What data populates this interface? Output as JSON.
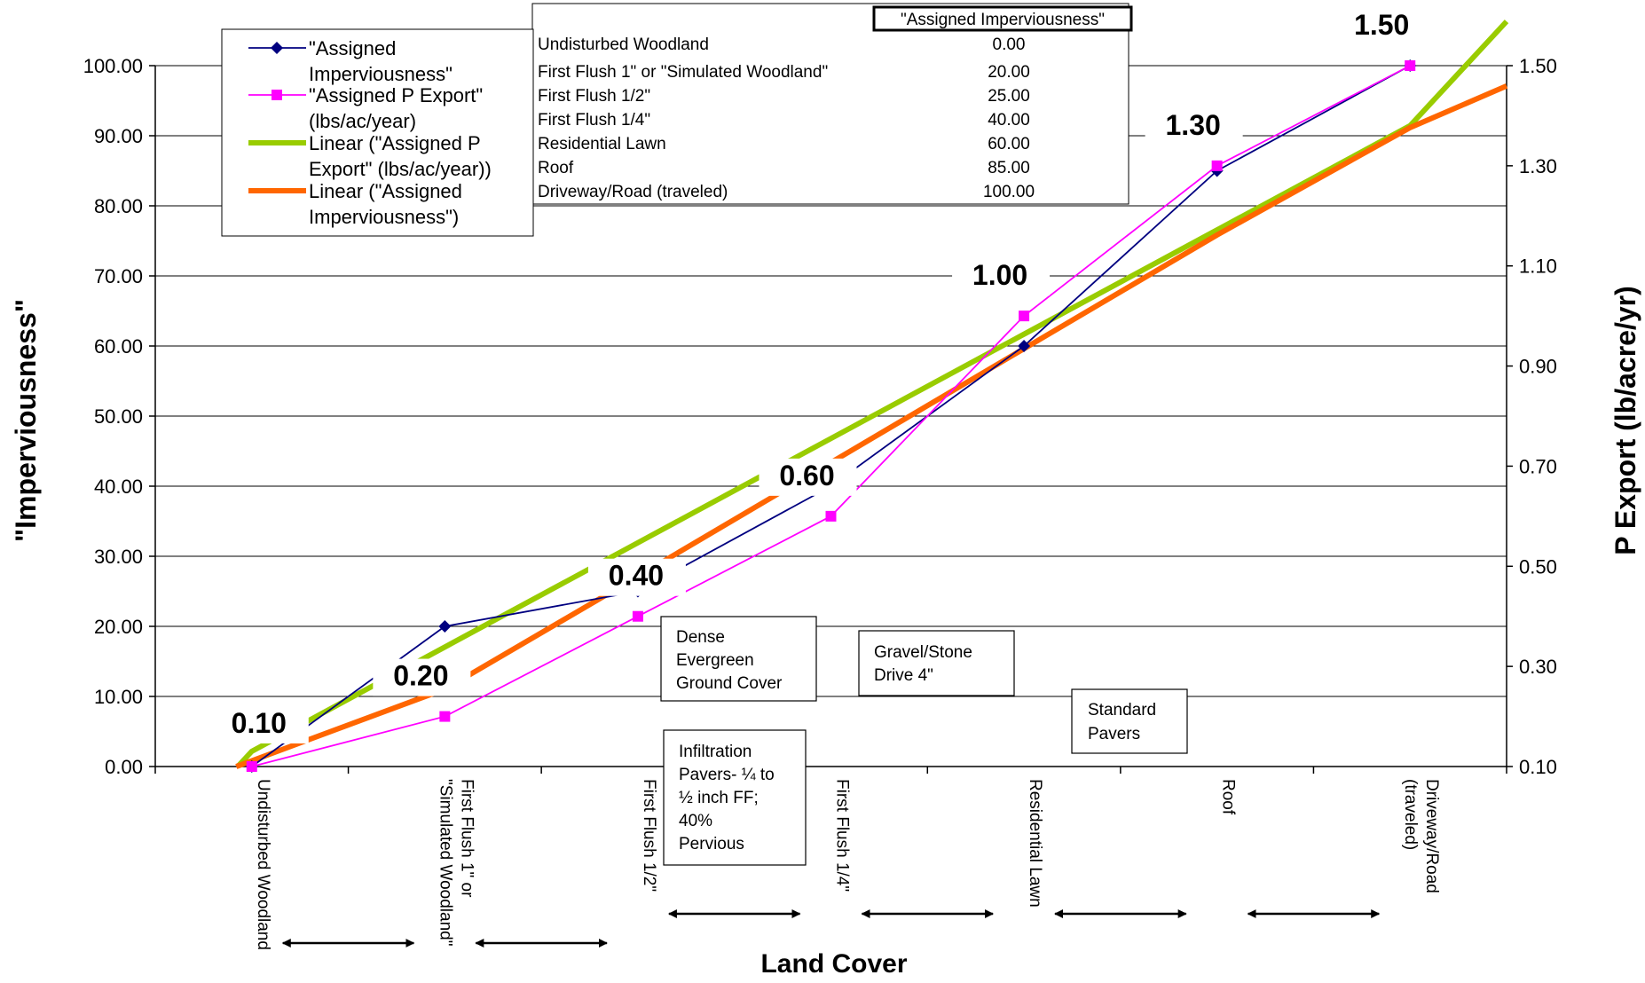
{
  "chart_data": {
    "type": "line",
    "xlabel": "Land Cover",
    "ylabel": "\"Imperviousness\"",
    "y2label": "P Export (lb/acre/yr)",
    "ylim": [
      0,
      100
    ],
    "y2lim": [
      0.1,
      1.5
    ],
    "y_ticks": [
      "0.00",
      "10.00",
      "20.00",
      "30.00",
      "40.00",
      "50.00",
      "60.00",
      "70.00",
      "80.00",
      "90.00",
      "100.00"
    ],
    "y2_ticks": [
      "0.10",
      "0.30",
      "0.50",
      "0.70",
      "0.90",
      "1.10",
      "1.30",
      "1.50"
    ],
    "grid": true,
    "categories": [
      [
        "Undisturbed Woodland"
      ],
      [
        "First Flush 1\" or",
        "\"Simulated Woodland\""
      ],
      [
        "First Flush 1/2\""
      ],
      [
        "First Flush 1/4\""
      ],
      [
        "Residential Lawn"
      ],
      [
        "Roof"
      ],
      [
        "Driveway/Road",
        "(traveled)"
      ]
    ],
    "series": [
      {
        "name": "\"Assigned Imperviousness\"",
        "axis": "left",
        "color": "#000080",
        "marker": "diamond",
        "values": [
          0,
          20,
          25,
          40,
          60,
          85,
          100
        ]
      },
      {
        "name": "\"Assigned P Export\" (lbs/ac/year)",
        "axis": "right",
        "color": "#ff00ff",
        "marker": "square",
        "values": [
          0.1,
          0.2,
          0.4,
          0.6,
          1.0,
          1.3,
          1.5
        ]
      }
    ],
    "trendlines": [
      {
        "name": "Linear (\"Assigned P Export\" (lbs/ac/year))",
        "color": "#99cc00",
        "axis": "right",
        "values": [
          -0.0779,
          0.1304,
          0.3387,
          0.547,
          0.7553,
          0.9636,
          1.1718,
          1.3801,
          1.5884
        ],
        "x": [
          0.5,
          1,
          2,
          3,
          4,
          5,
          6,
          7,
          7.5
        ]
      },
      {
        "name": "Linear (\"Assigned Imperviousness\")",
        "color": "#ff6600",
        "axis": "left",
        "values": [
          -4.28,
          0.82,
          11.03,
          27.13,
          43.37,
          59.62,
          75.84,
          91.16,
          97.1
        ],
        "x": [
          0.5,
          1,
          2,
          3,
          4,
          5,
          6,
          7,
          7.5
        ]
      }
    ],
    "point_labels": [
      {
        "text": "0.10",
        "x": 1,
        "y": 0.1
      },
      {
        "text": "0.20",
        "x": 2,
        "y": 0.2
      },
      {
        "text": "0.40",
        "x": 3,
        "y": 0.4
      },
      {
        "text": "0.60",
        "x": 4,
        "y": 0.6
      },
      {
        "text": "1.00",
        "x": 5,
        "y": 1.0
      },
      {
        "text": "1.30",
        "x": 6,
        "y": 1.3
      },
      {
        "text": "1.50",
        "x": 7,
        "y": 1.5
      }
    ],
    "table": {
      "header": "\"Assigned Imperviousness\"",
      "rows": [
        {
          "label": "Undisturbed Woodland",
          "value": "0.00"
        },
        {
          "label": "First Flush 1\" or \"Simulated Woodland\"",
          "value": "20.00"
        },
        {
          "label": "First Flush 1/2\"",
          "value": "25.00"
        },
        {
          "label": "First Flush 1/4\"",
          "value": "40.00"
        },
        {
          "label": "Residential Lawn",
          "value": "60.00"
        },
        {
          "label": "Roof",
          "value": "85.00"
        },
        {
          "label": "Driveway/Road (traveled)",
          "value": "100.00"
        }
      ]
    },
    "legend": {
      "placement": "top-left",
      "entries": [
        {
          "lines": [
            "\"Assigned",
            "Imperviousness\""
          ]
        },
        {
          "lines": [
            "\"Assigned P Export\"",
            "(lbs/ac/year)"
          ]
        },
        {
          "lines": [
            "Linear (\"Assigned P",
            "Export\" (lbs/ac/year))"
          ]
        },
        {
          "lines": [
            "Linear (\"Assigned",
            "Imperviousness\")"
          ]
        }
      ]
    },
    "annotations": [
      {
        "lines": [
          "Dense",
          "Evergreen",
          "Ground Cover"
        ]
      },
      {
        "lines": [
          "Infiltration",
          "Pavers- ¼ to",
          "½ inch FF;",
          "40%",
          "Pervious"
        ]
      },
      {
        "lines": [
          "Gravel/Stone",
          "Drive 4\""
        ]
      },
      {
        "lines": [
          "Standard",
          "Pavers"
        ]
      }
    ]
  }
}
